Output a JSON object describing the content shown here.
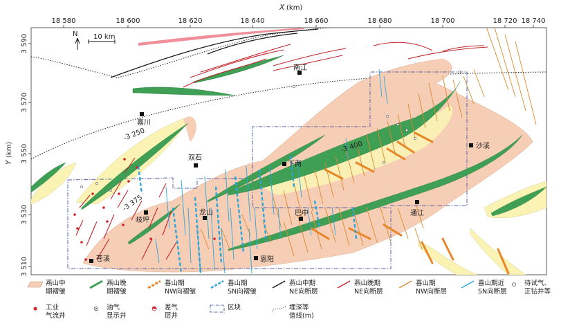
{
  "axes": {
    "x_title": "X",
    "x_unit": "(km)",
    "y_title": "Y",
    "y_unit": "(km)",
    "x_ticks": [
      "18 580",
      "18 600",
      "18 620",
      "18 640",
      "18 660",
      "18 680",
      "18 700",
      "18 720",
      "18 740"
    ],
    "y_ticks": [
      "3 590",
      "3 570",
      "3 550",
      "3 530",
      "3 510"
    ]
  },
  "north": "N",
  "scale_bar": "10 km",
  "cities": [
    {
      "name": "南江"
    },
    {
      "name": "嘉川"
    },
    {
      "name": "双石"
    },
    {
      "name": "下两"
    },
    {
      "name": "沙溪"
    },
    {
      "name": "岐坪"
    },
    {
      "name": "龙山"
    },
    {
      "name": "巴中"
    },
    {
      "name": "通江"
    },
    {
      "name": "苍溪"
    },
    {
      "name": "恩阳"
    }
  ],
  "contours": [
    "-3 250",
    "-3 400",
    "-3 375"
  ],
  "legend": [
    {
      "line1": "燕山中",
      "line2": "期褶皱"
    },
    {
      "line1": "燕山晚",
      "line2": "期褶皱"
    },
    {
      "line1": "喜山期",
      "line2": "NW向褶皱"
    },
    {
      "line1": "喜山期",
      "line2": "SN向褶皱"
    },
    {
      "line1": "燕山中期",
      "line2": "NE向断层"
    },
    {
      "line1": "燕山晚期",
      "line2": "NE向断层"
    },
    {
      "line1": "喜山期",
      "line2": "NW向断层"
    },
    {
      "line1": "喜山期近",
      "line2": "SN向断层"
    },
    {
      "line1": "待试气、",
      "line2": "正钻井等"
    },
    {
      "line1": "工业",
      "line2": "气流井"
    },
    {
      "line1": "油气",
      "line2": "显示井"
    },
    {
      "line1": "差气",
      "line2": "层井"
    },
    {
      "line1": "区块",
      "line2": ""
    },
    {
      "line1": "埋深等",
      "line2": "值线(m)"
    }
  ],
  "colors": {
    "yanshan_mid_fold": "#f6cdb5",
    "yanshan_late_fold": "#3f9f55",
    "xishan_nw_fold": "#e8862a",
    "xishan_sn_fold": "#2aa6dc",
    "yanshan_mid_fault": "#1a1a1a",
    "yanshan_late_fault": "#c0262b",
    "xishan_nw_fault": "#d98a2e",
    "xishan_sn_fault": "#2aa6dc",
    "depth_fill": "#fbf3b4",
    "block_outline": "#5561a8"
  }
}
